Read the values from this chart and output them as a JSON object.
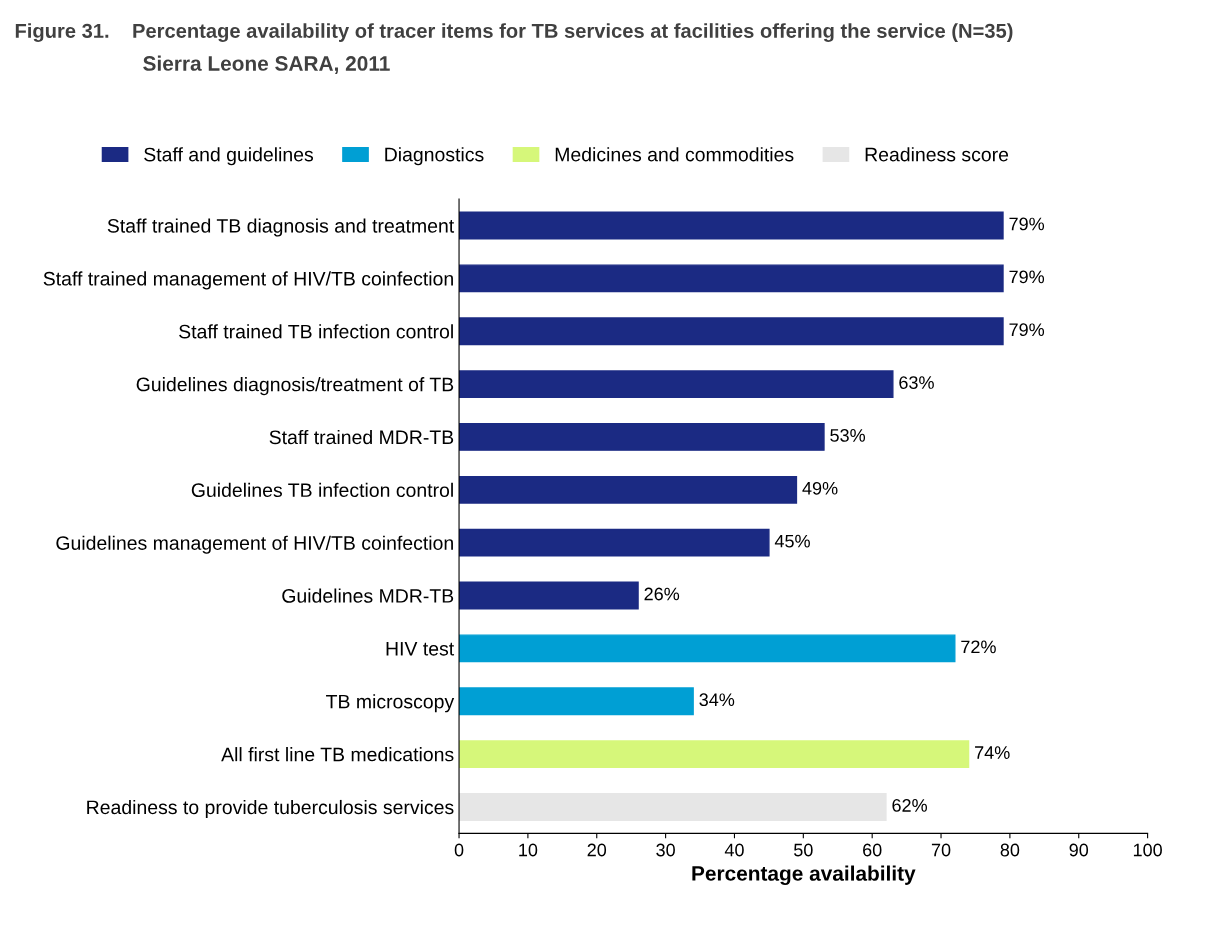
{
  "chart_data": {
    "type": "bar",
    "orientation": "horizontal",
    "title": "Figure 31.    Percentage availability of tracer items for TB services at facilities offering the service (N=35)",
    "subtitle": "Sierra Leone SARA, 2011",
    "xlabel": "Percentage availability",
    "categories": [
      "Staff trained TB diagnosis and treatment",
      "Staff trained management of HIV/TB coinfection",
      "Staff trained TB infection control",
      "Guidelines diagnosis/treatment of TB",
      "Staff trained MDR-TB",
      "Guidelines TB infection control",
      "Guidelines management of HIV/TB coinfection",
      "Guidelines MDR-TB",
      "HIV test",
      "TB microscopy",
      "All first line TB medications",
      "Readiness to provide tuberculosis services"
    ],
    "series": [
      {
        "name": "Staff and guidelines",
        "color": "#1b2a83",
        "values": [
          79,
          79,
          79,
          63,
          53,
          49,
          45,
          26,
          null,
          null,
          null,
          null
        ],
        "value_labels": [
          "79%",
          "79%",
          "79%",
          "63%",
          "53%",
          "49%",
          "45%",
          "26%",
          null,
          null,
          null,
          null
        ]
      },
      {
        "name": "Diagnostics",
        "color": "#009fd4",
        "values": [
          null,
          null,
          null,
          null,
          null,
          null,
          null,
          null,
          72,
          34,
          null,
          null
        ],
        "value_labels": [
          null,
          null,
          null,
          null,
          null,
          null,
          null,
          null,
          "72%",
          "34%",
          null,
          null
        ]
      },
      {
        "name": "Medicines and commodities",
        "color": "#d6f77a",
        "values": [
          null,
          null,
          null,
          null,
          null,
          null,
          null,
          null,
          null,
          null,
          74,
          null
        ],
        "value_labels": [
          null,
          null,
          null,
          null,
          null,
          null,
          null,
          null,
          null,
          null,
          "74%",
          null
        ]
      },
      {
        "name": "Readiness score",
        "color": "#e6e6e6",
        "values": [
          null,
          null,
          null,
          null,
          null,
          null,
          null,
          null,
          null,
          null,
          null,
          62
        ],
        "value_labels": [
          null,
          null,
          null,
          null,
          null,
          null,
          null,
          null,
          null,
          null,
          null,
          "62%"
        ]
      }
    ],
    "xlim": [
      0,
      100
    ],
    "xticks": [
      0,
      10,
      20,
      30,
      40,
      50,
      60,
      70,
      80,
      90,
      100
    ],
    "grid": false,
    "legend": "top"
  }
}
